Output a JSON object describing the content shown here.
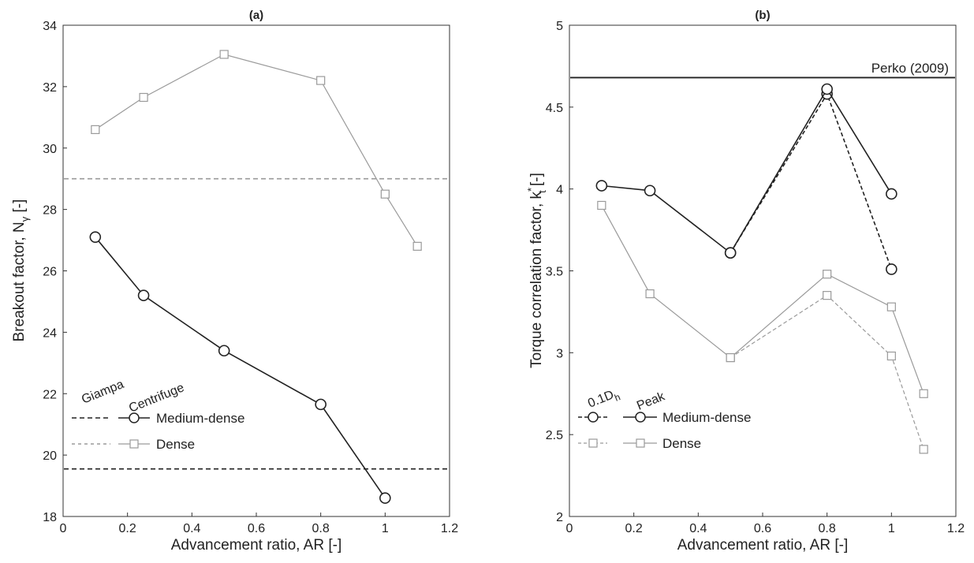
{
  "chart_data": [
    {
      "type": "line",
      "title": "(a)",
      "xlabel": "Advancement ratio, AR [-]",
      "ylabel": "Breakout factor, N",
      "ylabel_sub": "γ",
      "ylabel_tail": " [-]",
      "xlim": [
        0,
        1.2
      ],
      "ylim": [
        18,
        34
      ],
      "xticks": [
        0,
        0.2,
        0.4,
        0.6,
        0.8,
        1,
        1.2
      ],
      "xtick_labels": [
        "0",
        "0.2",
        "0.4",
        "0.6",
        "0.8",
        "1",
        "1.2"
      ],
      "yticks": [
        18,
        20,
        22,
        24,
        26,
        28,
        30,
        32,
        34
      ],
      "ytick_labels": [
        "18",
        "20",
        "22",
        "24",
        "26",
        "28",
        "30",
        "32",
        "34"
      ],
      "grid": false,
      "series": [
        {
          "name": "Medium-dense",
          "group": "Centrifuge",
          "marker": "circle",
          "color": "#222222",
          "dashed": false,
          "x": [
            0.1,
            0.25,
            0.5,
            0.8,
            1.0
          ],
          "y": [
            27.1,
            25.2,
            23.4,
            21.65,
            18.6
          ]
        },
        {
          "name": "Dense",
          "group": "Centrifuge",
          "marker": "square",
          "color": "#9a9a9a",
          "dashed": false,
          "x": [
            0.1,
            0.25,
            0.5,
            0.8,
            1.0,
            1.1
          ],
          "y": [
            30.6,
            31.65,
            33.05,
            32.2,
            28.5,
            26.8
          ]
        }
      ],
      "reference_lines": [
        {
          "name": "Medium-dense",
          "group": "Giampa",
          "y": 19.55,
          "color": "#222222",
          "dashed": true
        },
        {
          "name": "Dense",
          "group": "Giampa",
          "y": 29.0,
          "color": "#9a9a9a",
          "dashed": true
        }
      ],
      "legend": {
        "placement": "bottom-left",
        "headers": [
          "Giampa",
          "Centrifuge"
        ],
        "entries": [
          "Medium-dense",
          "Dense"
        ]
      }
    },
    {
      "type": "line",
      "title": "(b)",
      "xlabel": "Advancement ratio, AR [-]",
      "ylabel": "Torque correlation factor, k",
      "ylabel_sub": "t",
      "ylabel_sup": "*",
      "ylabel_tail": " [-]",
      "xlim": [
        0,
        1.2
      ],
      "ylim": [
        2,
        5
      ],
      "xticks": [
        0,
        0.2,
        0.4,
        0.6,
        0.8,
        1,
        1.2
      ],
      "xtick_labels": [
        "0",
        "0.2",
        "0.4",
        "0.6",
        "0.8",
        "1",
        "1.2"
      ],
      "yticks": [
        2,
        2.5,
        3,
        3.5,
        4,
        4.5,
        5
      ],
      "ytick_labels": [
        "2",
        "2.5",
        "3",
        "3.5",
        "4",
        "4.5",
        "5"
      ],
      "grid": false,
      "series": [
        {
          "name": "Medium-dense",
          "group": "Peak",
          "marker": "circle",
          "color": "#222222",
          "dashed": false,
          "x": [
            0.1,
            0.25,
            0.5,
            0.8,
            1.0
          ],
          "y": [
            4.02,
            3.99,
            3.61,
            4.61,
            3.97
          ]
        },
        {
          "name": "Medium-dense",
          "group": "0.1Dh",
          "marker": "circle",
          "color": "#222222",
          "dashed": true,
          "x": [
            0.5,
            0.8,
            1.0
          ],
          "y": [
            3.61,
            4.58,
            3.51
          ]
        },
        {
          "name": "Dense",
          "group": "Peak",
          "marker": "square",
          "color": "#9a9a9a",
          "dashed": false,
          "x": [
            0.1,
            0.25,
            0.5,
            0.8,
            1.0,
            1.1
          ],
          "y": [
            3.9,
            3.36,
            2.97,
            3.48,
            3.28,
            2.75
          ]
        },
        {
          "name": "Dense",
          "group": "0.1Dh",
          "marker": "square",
          "color": "#9a9a9a",
          "dashed": true,
          "x": [
            0.5,
            0.8,
            1.0,
            1.1
          ],
          "y": [
            2.97,
            3.35,
            2.98,
            2.41
          ]
        }
      ],
      "reference_lines": [
        {
          "name": "Perko (2009)",
          "y": 4.68,
          "color": "#222222",
          "dashed": false
        }
      ],
      "annotations": [
        "Perko (2009)"
      ],
      "legend": {
        "placement": "bottom-left",
        "header_left": "0.1D",
        "header_left_sub": "h",
        "header_right": "Peak",
        "entries": [
          "Medium-dense",
          "Dense"
        ]
      }
    }
  ]
}
